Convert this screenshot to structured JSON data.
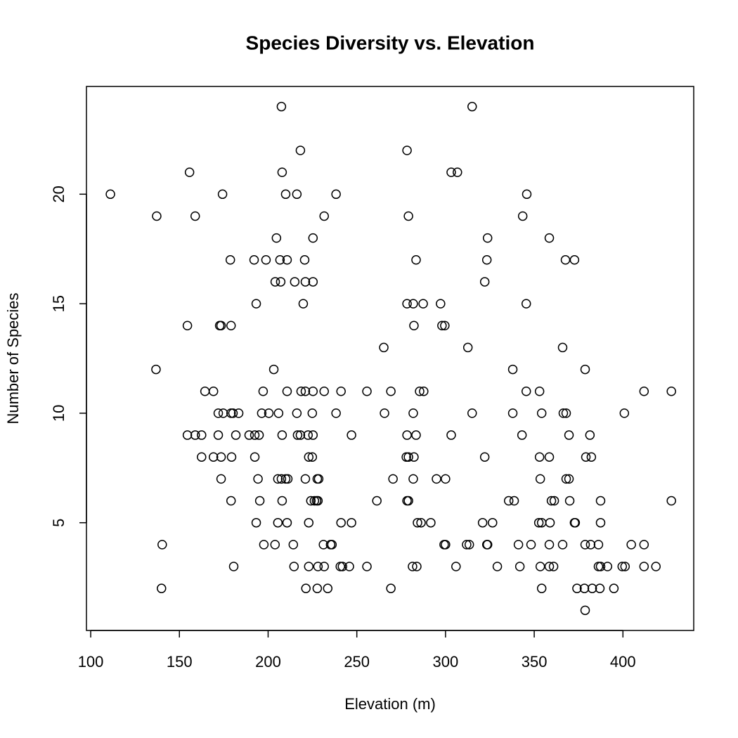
{
  "chart_data": {
    "type": "scatter",
    "title": "Species Diversity vs. Elevation",
    "x_label": "Elevation (m)",
    "y_label": "Number of Species",
    "xlim": [
      97.6,
      439.9
    ],
    "ylim": [
      0.08,
      24.92
    ],
    "xticks": [
      100,
      150,
      200,
      250,
      300,
      350,
      400
    ],
    "yticks": [
      5,
      10,
      15,
      20
    ],
    "color": "#000000",
    "x": [
      207.5,
      315.0,
      218.2,
      278.3,
      155.7,
      207.9,
      303.2,
      306.7,
      111.1,
      174.3,
      209.9,
      216.2,
      238.3,
      345.8,
      137.2,
      158.9,
      231.6,
      279.1,
      343.5,
      204.7,
      225.3,
      323.7,
      358.5,
      178.7,
      192.1,
      198.8,
      206.7,
      210.7,
      220.6,
      283.4,
      323.3,
      367.6,
      372.7,
      204.0,
      207.1,
      215.0,
      221.0,
      225.3,
      322.1,
      193.3,
      219.8,
      278.3,
      281.8,
      287.4,
      297.2,
      345.5,
      154.5,
      172.7,
      173.5,
      179.1,
      282.2,
      298.0,
      299.6,
      265.2,
      312.6,
      366.0,
      136.8,
      203.2,
      337.9,
      378.7,
      164.4,
      169.2,
      197.2,
      210.7,
      218.6,
      221.0,
      225.3,
      231.6,
      241.1,
      255.7,
      269.2,
      285.4,
      287.7,
      345.5,
      353.0,
      411.9,
      427.3,
      171.9,
      174.7,
      179.1,
      180.2,
      183.4,
      196.4,
      200.4,
      205.9,
      216.2,
      224.9,
      238.3,
      265.6,
      281.8,
      315.0,
      337.9,
      354.2,
      366.4,
      368.0,
      400.8,
      154.5,
      158.9,
      162.5,
      171.9,
      181.8,
      189.3,
      192.5,
      194.9,
      207.9,
      216.6,
      218.2,
      222.5,
      225.3,
      247.0,
      278.3,
      283.4,
      303.2,
      343.1,
      369.6,
      381.4,
      162.5,
      169.2,
      173.5,
      179.4,
      192.5,
      222.9,
      224.9,
      277.9,
      279.1,
      282.2,
      322.1,
      353.0,
      358.5,
      379.1,
      382.2,
      173.5,
      194.3,
      205.5,
      207.5,
      209.9,
      211.1,
      221.0,
      227.7,
      228.5,
      270.4,
      281.8,
      294.9,
      300.0,
      353.4,
      368.0,
      369.6,
      179.1,
      195.3,
      207.9,
      224.1,
      226.1,
      227.3,
      228.1,
      261.3,
      278.3,
      279.1,
      335.6,
      338.7,
      359.7,
      361.3,
      370.0,
      387.4,
      427.3,
      193.3,
      205.5,
      210.7,
      222.9,
      241.1,
      247.0,
      284.2,
      286.2,
      291.7,
      320.9,
      326.5,
      352.6,
      354.2,
      358.9,
      372.7,
      373.1,
      387.4,
      140.3,
      197.6,
      203.9,
      214.2,
      231.2,
      235.2,
      236.0,
      299.2,
      300.0,
      311.9,
      313.4,
      323.3,
      323.7,
      341.1,
      348.2,
      358.5,
      366.0,
      378.7,
      381.8,
      386.2,
      404.7,
      411.9,
      180.6,
      214.6,
      222.9,
      228.1,
      231.6,
      240.7,
      241.9,
      245.8,
      255.7,
      281.4,
      283.8,
      305.9,
      329.2,
      341.9,
      353.4,
      358.5,
      360.9,
      386.2,
      387.4,
      391.3,
      399.6,
      401.2,
      411.9,
      418.6,
      139.9,
      221.3,
      227.7,
      233.6,
      269.2,
      354.2,
      374.1,
      378.3,
      382.7,
      387.0,
      394.9,
      378.7
    ],
    "y": [
      24,
      24,
      22,
      22,
      21,
      21,
      21,
      21,
      20,
      20,
      20,
      20,
      20,
      20,
      19,
      19,
      19,
      19,
      19,
      18,
      18,
      18,
      18,
      17,
      17,
      17,
      17,
      17,
      17,
      17,
      17,
      17,
      17,
      16,
      16,
      16,
      16,
      16,
      16,
      15,
      15,
      15,
      15,
      15,
      15,
      15,
      14,
      14,
      14,
      14,
      14,
      14,
      14,
      13,
      13,
      13,
      12,
      12,
      12,
      12,
      11,
      11,
      11,
      11,
      11,
      11,
      11,
      11,
      11,
      11,
      11,
      11,
      11,
      11,
      11,
      11,
      11,
      10,
      10,
      10,
      10,
      10,
      10,
      10,
      10,
      10,
      10,
      10,
      10,
      10,
      10,
      10,
      10,
      10,
      10,
      10,
      9,
      9,
      9,
      9,
      9,
      9,
      9,
      9,
      9,
      9,
      9,
      9,
      9,
      9,
      9,
      9,
      9,
      9,
      9,
      9,
      8,
      8,
      8,
      8,
      8,
      8,
      8,
      8,
      8,
      8,
      8,
      8,
      8,
      8,
      8,
      7,
      7,
      7,
      7,
      7,
      7,
      7,
      7,
      7,
      7,
      7,
      7,
      7,
      7,
      7,
      7,
      6,
      6,
      6,
      6,
      6,
      6,
      6,
      6,
      6,
      6,
      6,
      6,
      6,
      6,
      6,
      6,
      6,
      5,
      5,
      5,
      5,
      5,
      5,
      5,
      5,
      5,
      5,
      5,
      5,
      5,
      5,
      5,
      5,
      5,
      4,
      4,
      4,
      4,
      4,
      4,
      4,
      4,
      4,
      4,
      4,
      4,
      4,
      4,
      4,
      4,
      4,
      4,
      4,
      4,
      4,
      4,
      3,
      3,
      3,
      3,
      3,
      3,
      3,
      3,
      3,
      3,
      3,
      3,
      3,
      3,
      3,
      3,
      3,
      3,
      3,
      3,
      3,
      3,
      3,
      3,
      2,
      2,
      2,
      2,
      2,
      2,
      2,
      2,
      2,
      2,
      2,
      1
    ]
  }
}
